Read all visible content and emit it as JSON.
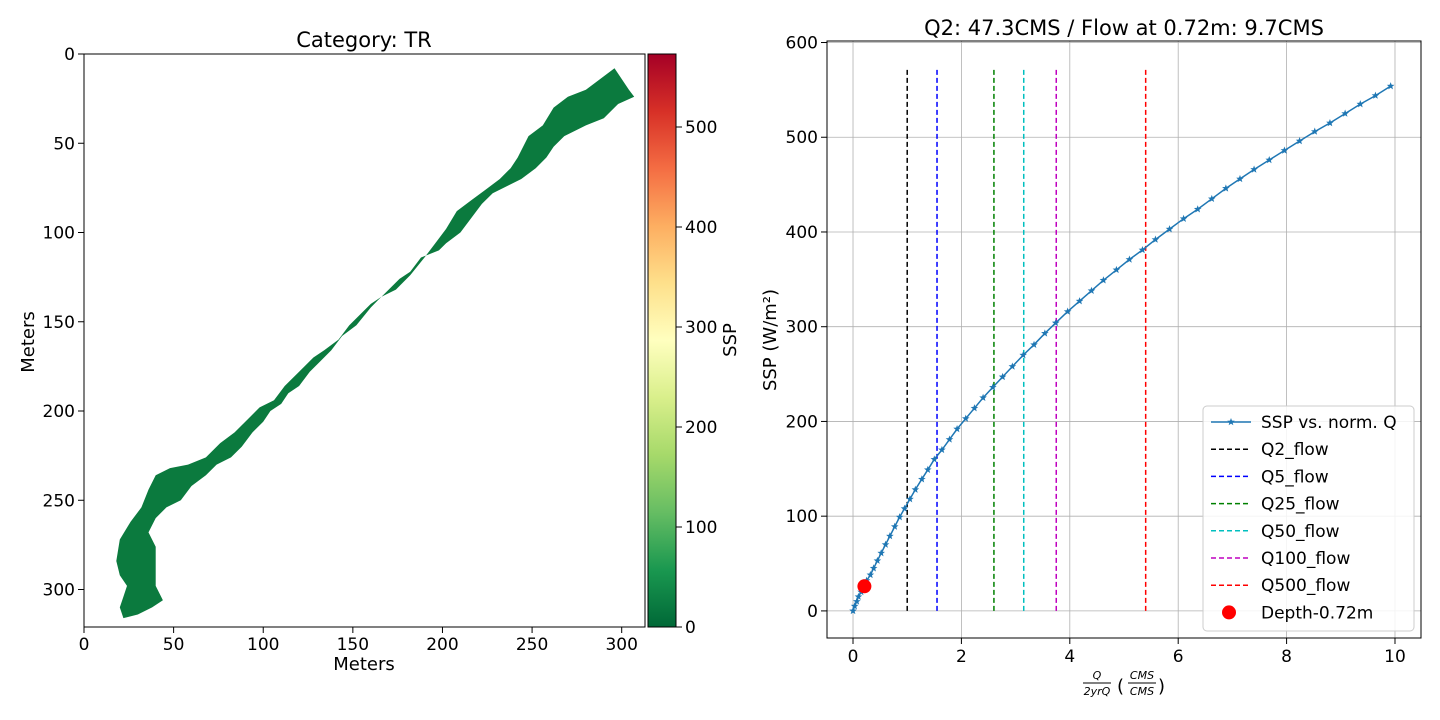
{
  "chart_data": [
    {
      "type": "heatmap",
      "title": "Category: TR",
      "xlabel": "Meters",
      "ylabel": "Meters",
      "xlim": [
        0,
        313
      ],
      "ylim": [
        321,
        0
      ],
      "xticks": [
        "0",
        "50",
        "100",
        "150",
        "200",
        "250",
        "300"
      ],
      "yticks": [
        "0",
        "50",
        "100",
        "150",
        "200",
        "250",
        "300"
      ],
      "colorbar": {
        "label": "SSP",
        "range": [
          0,
          573
        ],
        "ticks": [
          "0",
          "100",
          "200",
          "300",
          "400",
          "500"
        ],
        "colormap": "RdYlGn_r"
      },
      "region_value_ssp": 0,
      "region_color": "#0b7a3e",
      "region_outline_m": [
        [
          296,
          8
        ],
        [
          304,
          20
        ],
        [
          307,
          24
        ],
        [
          298,
          28
        ],
        [
          290,
          36
        ],
        [
          280,
          40
        ],
        [
          268,
          46
        ],
        [
          262,
          52
        ],
        [
          258,
          58
        ],
        [
          252,
          64
        ],
        [
          244,
          70
        ],
        [
          236,
          74
        ],
        [
          228,
          78
        ],
        [
          222,
          84
        ],
        [
          216,
          92
        ],
        [
          210,
          100
        ],
        [
          202,
          106
        ],
        [
          198,
          110
        ],
        [
          188,
          114
        ],
        [
          182,
          122
        ],
        [
          176,
          126
        ],
        [
          170,
          132
        ],
        [
          164,
          138
        ],
        [
          160,
          142
        ],
        [
          152,
          152
        ],
        [
          144,
          158
        ],
        [
          138,
          166
        ],
        [
          132,
          172
        ],
        [
          126,
          178
        ],
        [
          120,
          186
        ],
        [
          114,
          190
        ],
        [
          110,
          196
        ],
        [
          104,
          200
        ],
        [
          100,
          206
        ],
        [
          94,
          212
        ],
        [
          88,
          220
        ],
        [
          82,
          226
        ],
        [
          74,
          230
        ],
        [
          68,
          236
        ],
        [
          60,
          242
        ],
        [
          54,
          250
        ],
        [
          46,
          254
        ],
        [
          40,
          260
        ],
        [
          36,
          268
        ],
        [
          40,
          276
        ],
        [
          40,
          286
        ],
        [
          40,
          298
        ],
        [
          44,
          306
        ],
        [
          38,
          310
        ],
        [
          30,
          314
        ],
        [
          22,
          316
        ],
        [
          20,
          310
        ],
        [
          22,
          304
        ],
        [
          24,
          298
        ],
        [
          20,
          292
        ],
        [
          18,
          284
        ],
        [
          20,
          272
        ],
        [
          26,
          262
        ],
        [
          32,
          254
        ],
        [
          36,
          244
        ],
        [
          40,
          236
        ],
        [
          48,
          232
        ],
        [
          58,
          230
        ],
        [
          68,
          226
        ],
        [
          76,
          218
        ],
        [
          84,
          212
        ],
        [
          92,
          204
        ],
        [
          98,
          198
        ],
        [
          106,
          194
        ],
        [
          112,
          186
        ],
        [
          120,
          178
        ],
        [
          128,
          170
        ],
        [
          134,
          166
        ],
        [
          142,
          160
        ],
        [
          148,
          152
        ],
        [
          154,
          146
        ],
        [
          160,
          140
        ],
        [
          166,
          136
        ],
        [
          174,
          132
        ],
        [
          182,
          124
        ],
        [
          190,
          114
        ],
        [
          196,
          106
        ],
        [
          202,
          98
        ],
        [
          208,
          88
        ],
        [
          216,
          82
        ],
        [
          224,
          76
        ],
        [
          232,
          70
        ],
        [
          238,
          64
        ],
        [
          242,
          58
        ],
        [
          248,
          46
        ],
        [
          256,
          40
        ],
        [
          262,
          30
        ],
        [
          270,
          24
        ],
        [
          280,
          20
        ],
        [
          288,
          14
        ]
      ]
    },
    {
      "type": "line",
      "title": "Q2: 47.3CMS / Flow at 0.72m: 9.7CMS",
      "xlabel_numerator": "Q",
      "xlabel_denominator": "2yrQ",
      "xlabel_unit_numerator": "CMS",
      "xlabel_unit_denominator": "CMS",
      "ylabel": "SSP (W/m²)",
      "xlim": [
        -0.48,
        10.48
      ],
      "ylim": [
        -28.6,
        601.6
      ],
      "xticks": [
        "0",
        "2",
        "4",
        "6",
        "8",
        "10"
      ],
      "yticks": [
        "0",
        "100",
        "200",
        "300",
        "400",
        "500",
        "600"
      ],
      "grid": true,
      "legend_position": "lower-right",
      "colors": {
        "curve": "#1f77b4",
        "q2": "#000000",
        "q5": "#0000ff",
        "q25": "#008000",
        "q50": "#00bfbf",
        "q100": "#bf00bf",
        "q500": "#ff0000",
        "depth": "#ff0000"
      },
      "series": [
        {
          "name": "SSP vs. norm. Q",
          "marker": "star",
          "x": [
            0.0,
            0.03,
            0.07,
            0.1,
            0.15,
            0.2,
            0.25,
            0.32,
            0.38,
            0.45,
            0.52,
            0.6,
            0.68,
            0.77,
            0.86,
            0.95,
            1.05,
            1.15,
            1.27,
            1.38,
            1.5,
            1.64,
            1.78,
            1.92,
            2.08,
            2.24,
            2.4,
            2.58,
            2.76,
            2.94,
            3.14,
            3.34,
            3.54,
            3.74,
            3.96,
            4.18,
            4.4,
            4.62,
            4.86,
            5.1,
            5.34,
            5.58,
            5.84,
            6.1,
            6.36,
            6.62,
            6.88,
            7.14,
            7.4,
            7.68,
            7.96,
            8.24,
            8.52,
            8.8,
            9.08,
            9.36,
            9.64,
            9.92
          ],
          "y": [
            0,
            5,
            10,
            15,
            20,
            26,
            32,
            38,
            45,
            53,
            61,
            70,
            79,
            89,
            99,
            108,
            118,
            128,
            139,
            149,
            160,
            170,
            181,
            192,
            203,
            214,
            225,
            236,
            247,
            258,
            270,
            281,
            293,
            304,
            316,
            327,
            338,
            349,
            360,
            371,
            381,
            392,
            403,
            414,
            424,
            435,
            446,
            456,
            466,
            476,
            486,
            496,
            506,
            515,
            525,
            535,
            544,
            554
          ]
        },
        {
          "name": "Q2_flow",
          "x": 1.0,
          "y_range": [
            0,
            573
          ],
          "dashed": true
        },
        {
          "name": "Q5_flow",
          "x": 1.55,
          "y_range": [
            0,
            573
          ],
          "dashed": true
        },
        {
          "name": "Q25_flow",
          "x": 2.6,
          "y_range": [
            0,
            573
          ],
          "dashed": true
        },
        {
          "name": "Q50_flow",
          "x": 3.15,
          "y_range": [
            0,
            573
          ],
          "dashed": true
        },
        {
          "name": "Q100_flow",
          "x": 3.75,
          "y_range": [
            0,
            573
          ],
          "dashed": true
        },
        {
          "name": "Q500_flow",
          "x": 5.4,
          "y_range": [
            0,
            573
          ],
          "dashed": true
        },
        {
          "name": "Depth-0.72m",
          "x": 0.21,
          "y": 26,
          "marker": "circle"
        }
      ]
    }
  ]
}
